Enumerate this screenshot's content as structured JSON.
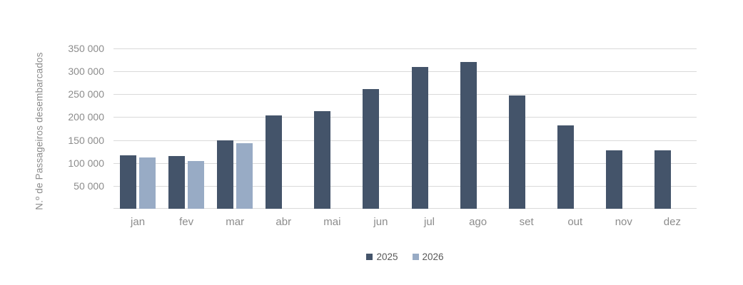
{
  "chart_data": {
    "type": "bar",
    "title": "",
    "xlabel": "",
    "ylabel": "N.º de Passageiros desembarcados",
    "categories": [
      "jan",
      "fev",
      "mar",
      "abr",
      "mai",
      "jun",
      "jul",
      "ago",
      "set",
      "out",
      "nov",
      "dez"
    ],
    "series": [
      {
        "name": "2025",
        "color": "#44546A",
        "values": [
          117000,
          115000,
          149000,
          204000,
          213000,
          262000,
          309000,
          320000,
          247000,
          182000,
          128000,
          128000
        ]
      },
      {
        "name": "2026",
        "color": "#98ABC5",
        "values": [
          112000,
          104000,
          143000,
          null,
          null,
          null,
          null,
          null,
          null,
          null,
          null,
          null
        ]
      }
    ],
    "ylim": [
      0,
      350000
    ],
    "y_tick_step": 50000,
    "y_tick_labels": [
      "350 000",
      "300 000",
      "250 000",
      "200 000",
      "150 000",
      "100 000",
      "50 000"
    ],
    "grid": true,
    "gridline_color": "#D9D9D9",
    "axis_text_color": "#8C8C8C",
    "legend_text_color": "#595959",
    "legend_position": "bottom"
  }
}
